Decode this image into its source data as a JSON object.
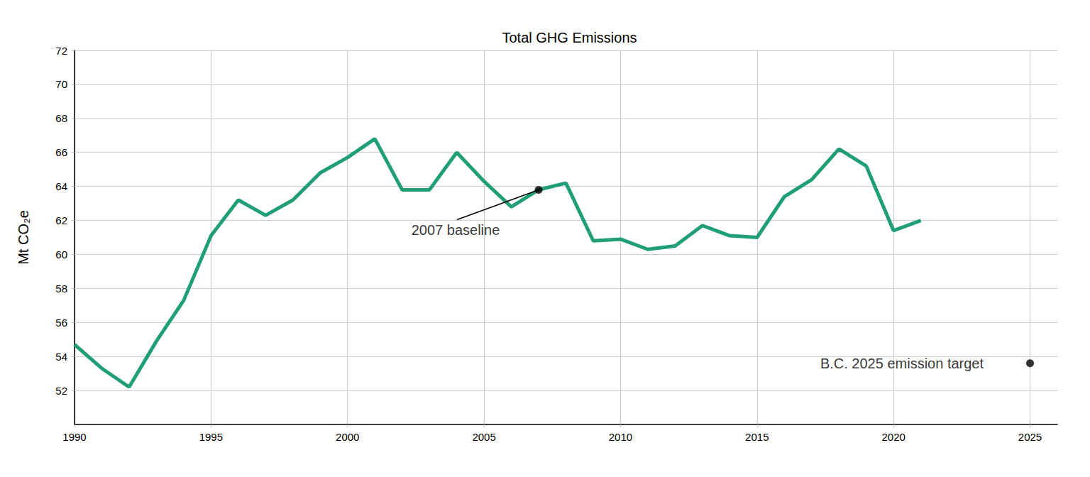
{
  "chart_data": {
    "type": "line",
    "title": "Total GHG Emissions",
    "y_label": "Mt CO₂e",
    "x": [
      1990,
      1991,
      1992,
      1993,
      1994,
      1995,
      1996,
      1997,
      1998,
      1999,
      2000,
      2001,
      2002,
      2003,
      2004,
      2005,
      2006,
      2007,
      2008,
      2009,
      2010,
      2011,
      2012,
      2013,
      2014,
      2015,
      2016,
      2017,
      2018,
      2019,
      2020,
      2021
    ],
    "values": [
      54.7,
      53.3,
      52.2,
      54.9,
      57.3,
      61.1,
      63.2,
      62.3,
      63.2,
      64.8,
      65.7,
      66.8,
      63.8,
      63.8,
      66.0,
      64.3,
      62.8,
      63.8,
      64.2,
      60.8,
      60.9,
      60.3,
      60.5,
      61.7,
      61.1,
      61.0,
      63.4,
      64.4,
      66.2,
      65.2,
      61.4,
      62.0
    ],
    "color": "#1f9e78",
    "xlim": [
      1990,
      2026
    ],
    "xticks": [
      1990,
      1995,
      2000,
      2005,
      2010,
      2015,
      2020,
      2025
    ],
    "ylim": [
      50,
      72
    ],
    "yticks": [
      52,
      54,
      56,
      58,
      60,
      62,
      64,
      66,
      68,
      70,
      72
    ],
    "grid": true,
    "annotations": [
      {
        "text": "2007 baseline",
        "x": 2007,
        "y": 63.8
      },
      {
        "text": "B.C. 2025 emission target",
        "x": 2025,
        "y": 53.6
      }
    ]
  }
}
